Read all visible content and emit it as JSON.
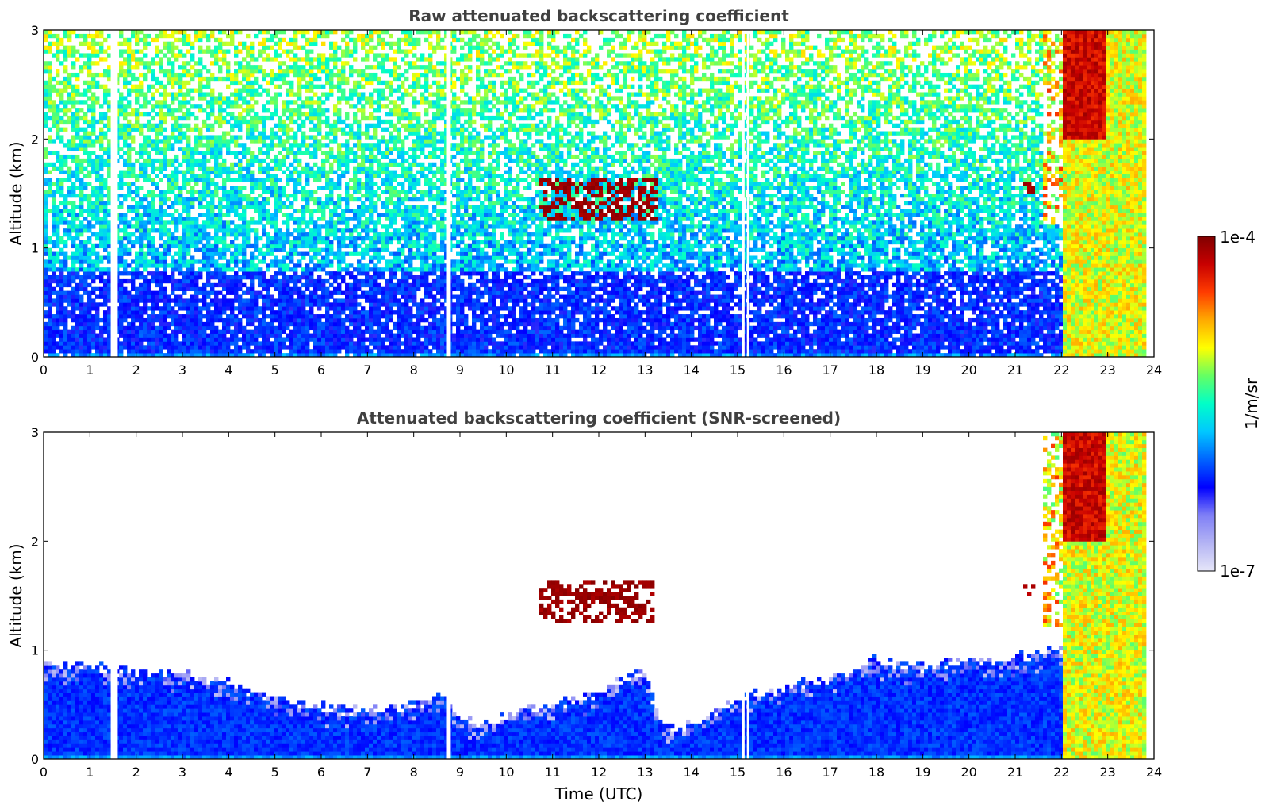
{
  "chart_data": [
    {
      "type": "heatmap",
      "title": "Raw attenuated backscattering coefficient",
      "xlabel": "",
      "ylabel": "Altitude (km)",
      "xlim": [
        0,
        24
      ],
      "ylim": [
        0,
        3
      ],
      "xticks": [
        "0",
        "1",
        "2",
        "3",
        "4",
        "5",
        "6",
        "7",
        "8",
        "9",
        "10",
        "11",
        "12",
        "13",
        "14",
        "15",
        "16",
        "17",
        "18",
        "19",
        "20",
        "21",
        "22",
        "23",
        "24"
      ],
      "yticks": [
        "0",
        "1",
        "2",
        "3"
      ],
      "screened": false,
      "layers": [
        {
          "feature": "boundary layer",
          "x_range": [
            0,
            22
          ],
          "y_range": [
            0,
            0.8
          ],
          "level": 0.3
        },
        {
          "feature": "aerosol / noise",
          "x_range": [
            0,
            22
          ],
          "y_range": [
            0.8,
            3
          ],
          "level": 0.5
        },
        {
          "feature": "cloud",
          "x_range": [
            10.7,
            13.3
          ],
          "y_range": [
            1.25,
            1.65
          ],
          "level": 0.97
        },
        {
          "feature": "cloud",
          "x_range": [
            21.2,
            21.4
          ],
          "y_range": [
            1.5,
            1.6
          ],
          "level": 0.95
        },
        {
          "feature": "precipitation",
          "x_range": [
            22.0,
            23.8
          ],
          "y_range": [
            0,
            3
          ],
          "level": 0.65
        }
      ],
      "grid": false
    },
    {
      "type": "heatmap",
      "title": "Attenuated backscattering coefficient (SNR-screened)",
      "xlabel": "Time (UTC)",
      "ylabel": "Altitude (km)",
      "xlim": [
        0,
        24
      ],
      "ylim": [
        0,
        3
      ],
      "xticks": [
        "0",
        "1",
        "2",
        "3",
        "4",
        "5",
        "6",
        "7",
        "8",
        "9",
        "10",
        "11",
        "12",
        "13",
        "14",
        "15",
        "16",
        "17",
        "18",
        "19",
        "20",
        "21",
        "22",
        "23",
        "24"
      ],
      "yticks": [
        "0",
        "1",
        "2",
        "3"
      ],
      "screened": true,
      "boundary_layer_top": {
        "x": [
          0,
          1,
          2,
          3,
          4,
          5,
          6,
          7,
          8,
          8.6,
          9,
          9.5,
          10,
          10.5,
          11,
          11.5,
          12,
          12.5,
          13,
          13.3,
          13.7,
          14,
          14.5,
          15,
          15.5,
          16,
          17,
          18,
          19,
          20,
          21,
          22
        ],
        "y": [
          0.85,
          0.85,
          0.8,
          0.78,
          0.7,
          0.55,
          0.47,
          0.45,
          0.5,
          0.6,
          0.35,
          0.32,
          0.4,
          0.45,
          0.5,
          0.55,
          0.6,
          0.75,
          0.8,
          0.35,
          0.25,
          0.3,
          0.45,
          0.55,
          0.6,
          0.65,
          0.75,
          0.9,
          0.85,
          0.9,
          0.92,
          1.0
        ]
      },
      "layers": [
        {
          "feature": "cloud",
          "x_range": [
            10.7,
            13.2
          ],
          "y_range": [
            1.25,
            1.65
          ],
          "level": 0.97
        },
        {
          "feature": "cloud",
          "x_range": [
            21.2,
            21.4
          ],
          "y_range": [
            1.5,
            1.6
          ],
          "level": 0.95
        },
        {
          "feature": "precipitation",
          "x_range": [
            22.0,
            23.8
          ],
          "y_range": [
            0,
            3
          ],
          "level": 0.65
        }
      ],
      "grid": false
    }
  ],
  "colorbar": {
    "label": "1/m/sr",
    "max_label": "1e-4",
    "min_label": "1e-7",
    "colors": [
      "#e6e6f8",
      "#b4b4f4",
      "#7f7ff6",
      "#0000ff",
      "#0064ff",
      "#00c8ff",
      "#00ffc8",
      "#64ff64",
      "#ffff00",
      "#ffaa00",
      "#ff3c00",
      "#c80000",
      "#800000"
    ]
  }
}
